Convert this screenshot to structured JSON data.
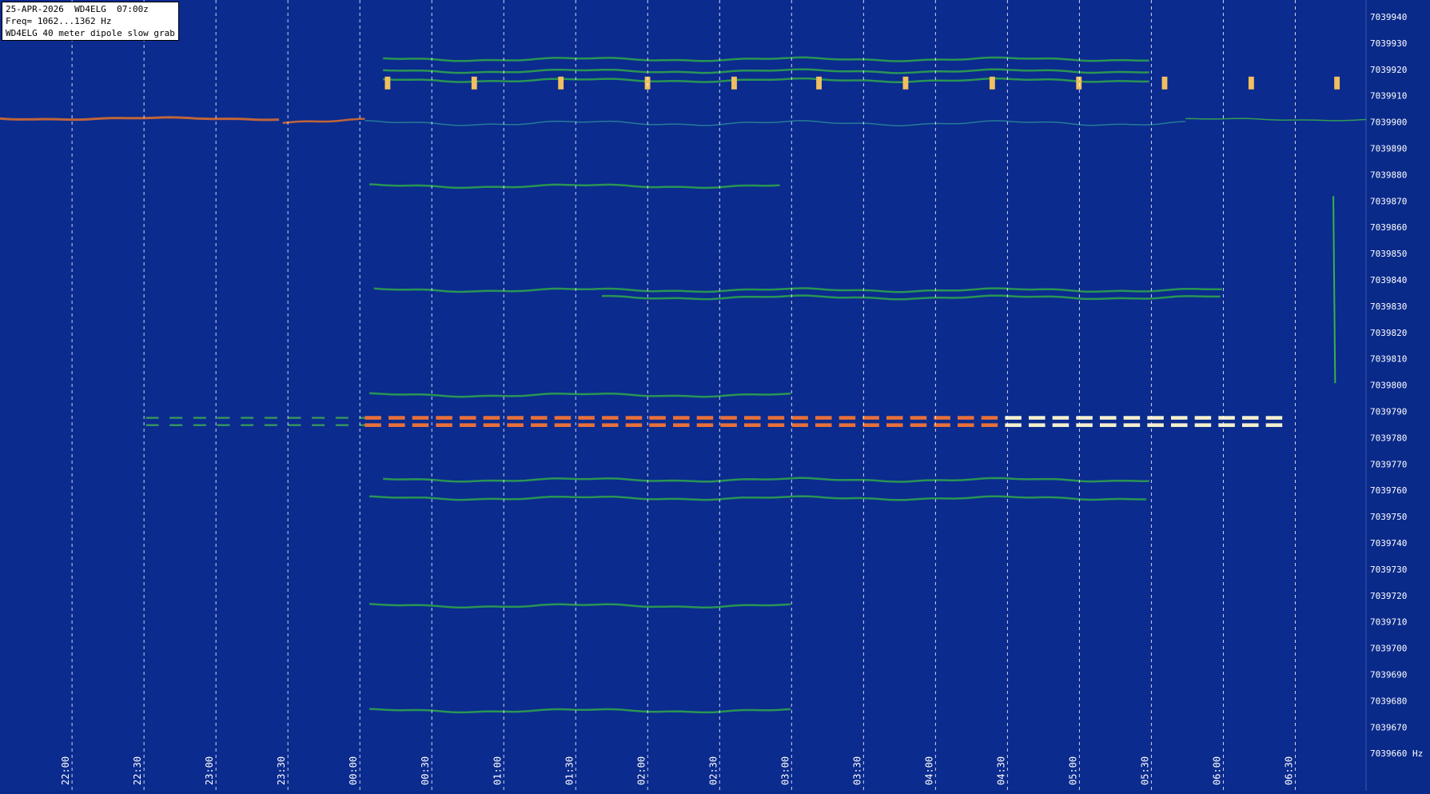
{
  "header": {
    "lines": [
      "25-APR-2026  WD4ELG  07:00z",
      "Freq= 1062...1362 Hz",
      "WD4ELG 40 meter dipole slow grab"
    ]
  },
  "time_labels": [
    "22:00",
    "22:30",
    "23:00",
    "23:30",
    "00:00",
    "00:30",
    "01:00",
    "01:30",
    "02:00",
    "02:30",
    "03:00",
    "03:30",
    "04:00",
    "04:30",
    "05:00",
    "05:30",
    "06:00",
    "06:30"
  ],
  "freq_labels": [
    "7039940",
    "7039930",
    "7039920",
    "7039910",
    "7039900",
    "7039890",
    "7039880",
    "7039870",
    "7039860",
    "7039850",
    "7039840",
    "7039830",
    "7039820",
    "7039810",
    "7039800",
    "7039790",
    "7039780",
    "7039770",
    "7039760",
    "7039750",
    "7039740",
    "7039730",
    "7039720",
    "7039710",
    "7039700",
    "7039690",
    "7039680",
    "7039670",
    "7039660 Hz"
  ]
}
